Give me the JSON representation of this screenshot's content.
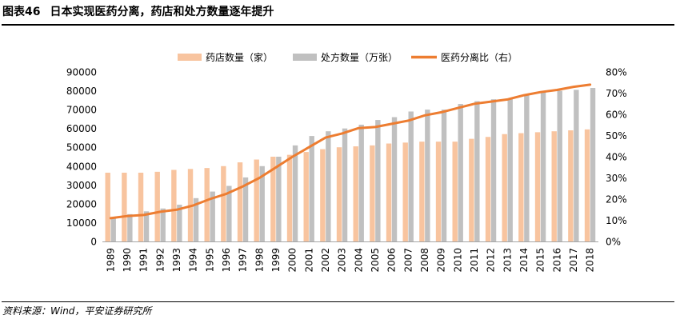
{
  "figure": {
    "number": "图表46",
    "title": "日本实现医药分离，药店和处方数量逐年提升"
  },
  "source": "资料来源：Wind，平安证券研究所",
  "colors": {
    "pharmacy": "#f8c49f",
    "prescription": "#c0c0c0",
    "ratio": "#ed7d31"
  },
  "chart_data": {
    "type": "bar",
    "combo": "bar+line",
    "categories": [
      "1989",
      "1990",
      "1991",
      "1992",
      "1993",
      "1994",
      "1995",
      "1996",
      "1997",
      "1998",
      "1999",
      "2000",
      "2001",
      "2002",
      "2003",
      "2004",
      "2005",
      "2006",
      "2007",
      "2008",
      "2009",
      "2010",
      "2011",
      "2012",
      "2013",
      "2014",
      "2015",
      "2016",
      "2017",
      "2018"
    ],
    "series": [
      {
        "name": "药店数量（家）",
        "type": "bar",
        "axis": "left",
        "values": [
          36500,
          36500,
          36500,
          37000,
          38000,
          38500,
          39000,
          40000,
          42000,
          43500,
          45000,
          46000,
          47500,
          49000,
          50000,
          50500,
          51000,
          52000,
          52500,
          53000,
          53000,
          53000,
          54500,
          55500,
          57000,
          57500,
          58000,
          58500,
          59000,
          59500
        ]
      },
      {
        "name": "处方数量（万张）",
        "type": "bar",
        "axis": "left",
        "values": [
          12500,
          14500,
          16000,
          17500,
          19500,
          23000,
          26500,
          29500,
          34000,
          40000,
          45000,
          51000,
          56000,
          58500,
          60000,
          62000,
          64500,
          66000,
          69000,
          70000,
          70000,
          73000,
          74500,
          75500,
          76000,
          78000,
          79500,
          80000,
          80500,
          81500
        ]
      },
      {
        "name": "医药分离比（右）",
        "type": "line",
        "axis": "right",
        "unit": "%",
        "values": [
          11,
          12,
          12.5,
          14,
          15,
          17,
          20,
          22.5,
          26,
          30,
          35,
          40,
          44.5,
          49,
          51,
          53.5,
          54,
          55.5,
          57,
          59.5,
          61,
          63,
          65,
          66,
          67,
          69,
          70.5,
          71.5,
          73,
          74
        ]
      }
    ],
    "y_left": {
      "min": 0,
      "max": 90000,
      "ticks": [
        "0",
        "10000",
        "20000",
        "30000",
        "40000",
        "50000",
        "60000",
        "70000",
        "80000",
        "90000"
      ]
    },
    "y_right": {
      "min": 0,
      "max": 80,
      "ticks": [
        "0%",
        "10%",
        "20%",
        "30%",
        "40%",
        "50%",
        "60%",
        "70%",
        "80%"
      ]
    },
    "legend_position": "top-center",
    "grid": false,
    "xlabel": "",
    "ylabel": ""
  }
}
